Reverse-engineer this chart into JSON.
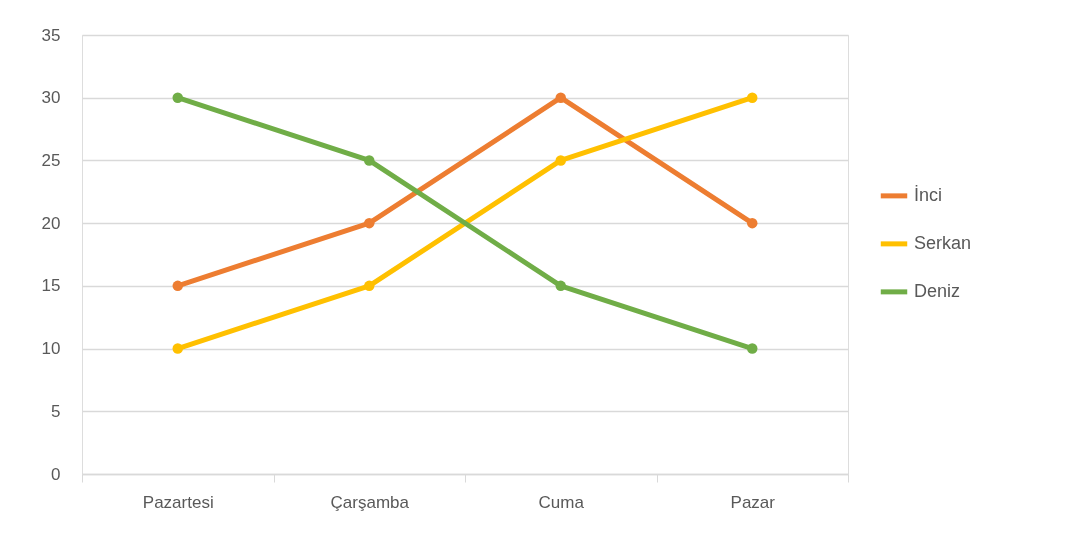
{
  "chart_data": {
    "type": "line",
    "categories": [
      "Pazartesi",
      "Çarşamba",
      "Cuma",
      "Pazar"
    ],
    "series": [
      {
        "name": "İnci",
        "color": "#ed7d31",
        "values": [
          15,
          20,
          30,
          20
        ]
      },
      {
        "name": "Serkan",
        "color": "#ffc000",
        "values": [
          10,
          15,
          25,
          30
        ]
      },
      {
        "name": "Deniz",
        "color": "#70ad47",
        "values": [
          30,
          25,
          15,
          10
        ]
      }
    ],
    "ylim": [
      0,
      35
    ],
    "yticks": [
      0,
      5,
      10,
      15,
      20,
      25,
      30,
      35
    ],
    "grid": "y",
    "legend": "right",
    "marker": "circle",
    "line_style": "solid"
  }
}
